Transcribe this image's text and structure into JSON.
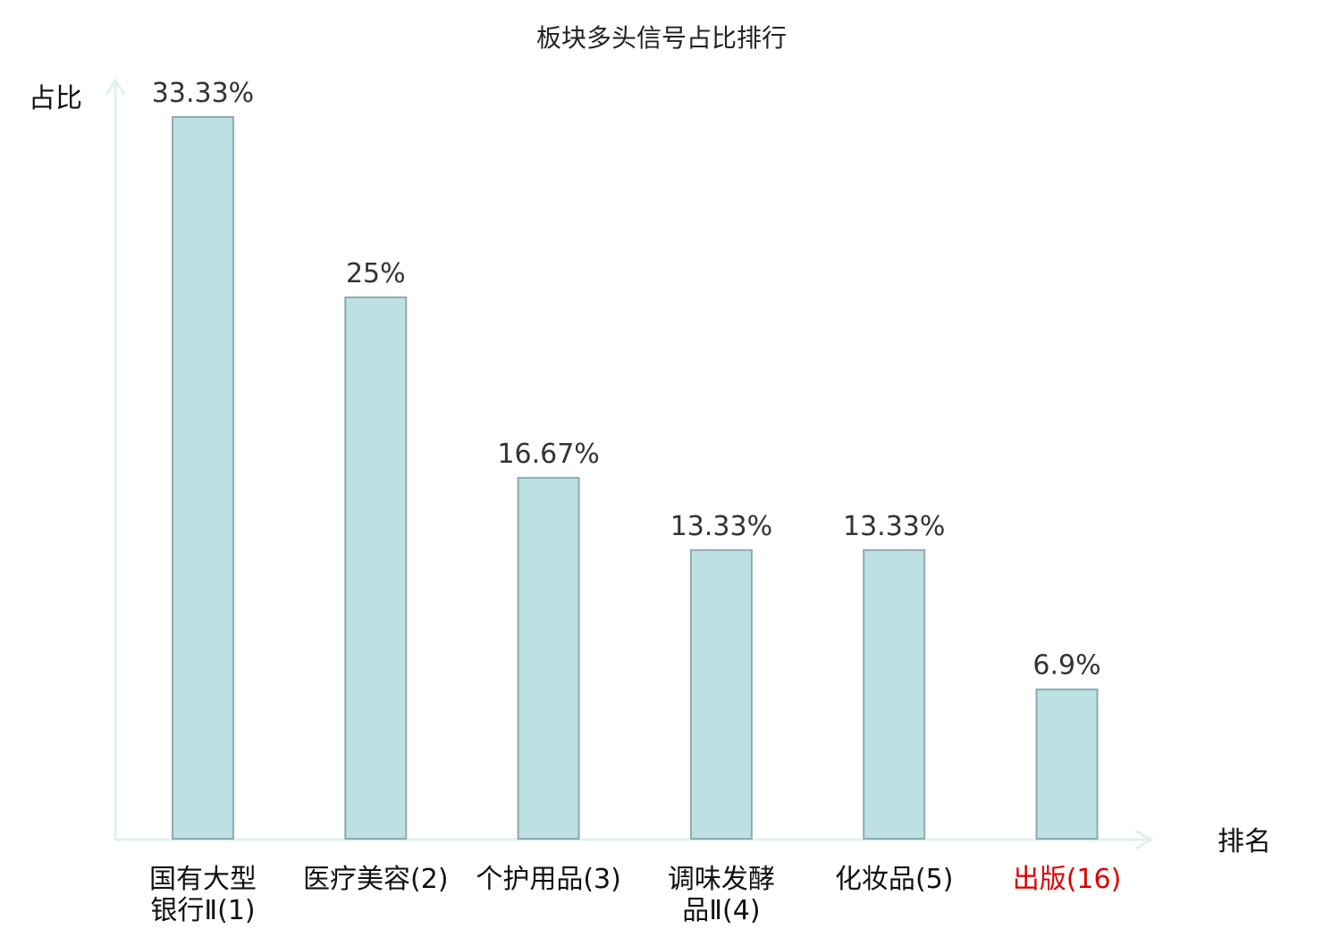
{
  "chart_data": {
    "type": "bar",
    "title": "板块多头信号占比排行",
    "ylabel": "占比",
    "xlabel": "排名",
    "ylim": [
      0,
      33.33
    ],
    "grid": false,
    "categories": [
      {
        "name_lines": [
          "国有大型",
          "银行Ⅱ"
        ],
        "rank": "(1)",
        "highlight": false
      },
      {
        "name_lines": [
          "医疗美容"
        ],
        "rank": "(2)",
        "highlight": false
      },
      {
        "name_lines": [
          "个护用品"
        ],
        "rank": "(3)",
        "highlight": false
      },
      {
        "name_lines": [
          "调味发酵",
          "品Ⅱ"
        ],
        "rank": "(4)",
        "highlight": false
      },
      {
        "name_lines": [
          "化妆品"
        ],
        "rank": "(5)",
        "highlight": false
      },
      {
        "name_lines": [
          "出版"
        ],
        "rank": "(16)",
        "highlight": true
      }
    ],
    "values": [
      33.33,
      25,
      16.67,
      13.33,
      13.33,
      6.9
    ],
    "value_labels": [
      "33.33%",
      "25%",
      "16.67%",
      "13.33%",
      "13.33%",
      "6.9%"
    ],
    "colors": {
      "bar_fill": "#bde0e2",
      "bar_stroke": "#8faaaf",
      "axis": "#dff1ee",
      "highlight_text": "#dd0000",
      "normal_text": "#111111"
    }
  }
}
